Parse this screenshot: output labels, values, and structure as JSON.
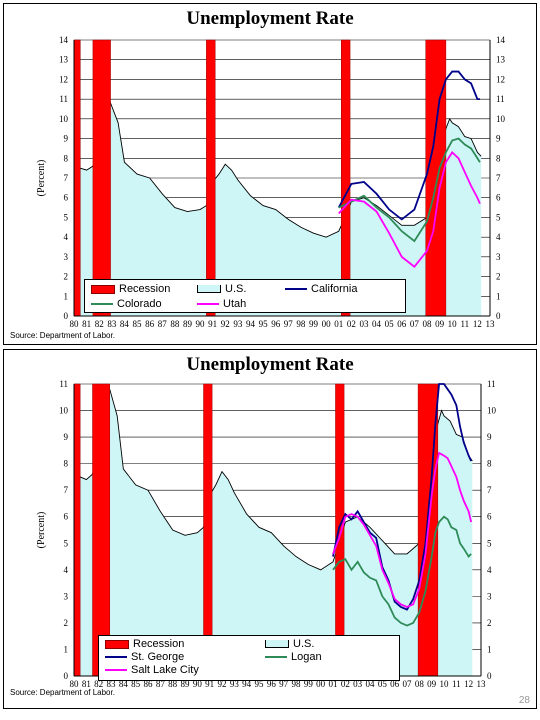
{
  "slide": {
    "page_number": "28"
  },
  "colors": {
    "recession": "#ff0000",
    "us_area": "#cff6f6",
    "california": "#00008b",
    "colorado": "#2e8b57",
    "utah": "#ff00ff",
    "st_george": "#00008b",
    "logan": "#2e8b57",
    "salt_lake_city": "#ff00ff",
    "grid": "#000000"
  },
  "chart_data": [
    {
      "type": "area",
      "title": "Unemployment Rate",
      "ylabel": "(Percent)",
      "source": "Source: Department of Labor.",
      "ylim": [
        0,
        14
      ],
      "yticks": [
        "0",
        "1",
        "2",
        "3",
        "4",
        "5",
        "6",
        "7",
        "8",
        "9",
        "10",
        "11",
        "12",
        "13",
        "14"
      ],
      "x_ticks": [
        "80",
        "81",
        "82",
        "83",
        "84",
        "85",
        "86",
        "87",
        "88",
        "89",
        "90",
        "91",
        "92",
        "93",
        "94",
        "95",
        "96",
        "97",
        "98",
        "99",
        "00",
        "01",
        "02",
        "03",
        "04",
        "05",
        "06",
        "07",
        "08",
        "09",
        "10",
        "11",
        "12",
        "13"
      ],
      "xlim": [
        1980,
        2013
      ],
      "grid": true,
      "legend": {
        "placement": "bottom-left",
        "labels": {
          "recession": "Recession",
          "us": "U.S.",
          "california": "California",
          "colorado": "Colorado",
          "utah": "Utah"
        }
      },
      "recessions": [
        [
          1980.0,
          1980.5
        ],
        [
          1981.5,
          1982.9
        ],
        [
          1990.5,
          1991.2
        ],
        [
          2001.2,
          2001.9
        ],
        [
          2007.9,
          2009.5
        ]
      ],
      "series": [
        {
          "name": "U.S.",
          "kind": "area",
          "x": [
            1980,
            1980.5,
            1981,
            1981.5,
            1982,
            1982.5,
            1982.9,
            1983.5,
            1984,
            1985,
            1986,
            1987,
            1988,
            1989,
            1990,
            1990.5,
            1991,
            1991.5,
            1992,
            1992.5,
            1993,
            1994,
            1995,
            1996,
            1997,
            1998,
            1999,
            2000,
            2001,
            2001.5,
            2002,
            2003,
            2004,
            2005,
            2006,
            2007,
            2008,
            2008.5,
            2009,
            2009.5,
            2009.8,
            2010,
            2010.5,
            2011,
            2011.5,
            2012,
            2012.3
          ],
          "y": [
            6.3,
            7.5,
            7.4,
            7.6,
            8.8,
            9.8,
            10.8,
            9.8,
            7.8,
            7.2,
            7.0,
            6.2,
            5.5,
            5.3,
            5.4,
            5.6,
            6.8,
            7.2,
            7.7,
            7.4,
            6.9,
            6.1,
            5.6,
            5.4,
            4.9,
            4.5,
            4.2,
            4.0,
            4.3,
            5.0,
            5.8,
            6.0,
            5.6,
            5.1,
            4.6,
            4.6,
            5.0,
            6.1,
            8.2,
            9.5,
            10.0,
            9.8,
            9.6,
            9.1,
            9.0,
            8.3,
            8.1
          ]
        },
        {
          "name": "California",
          "kind": "line",
          "x": [
            2001,
            2002,
            2003,
            2004,
            2005,
            2006,
            2007,
            2008,
            2008.5,
            2009,
            2009.5,
            2010,
            2010.5,
            2011,
            2011.5,
            2012,
            2012.2
          ],
          "y": [
            5.5,
            6.7,
            6.8,
            6.2,
            5.4,
            4.9,
            5.4,
            7.2,
            8.6,
            11.0,
            12.0,
            12.4,
            12.4,
            12.0,
            11.8,
            11.0,
            11.0
          ]
        },
        {
          "name": "Colorado",
          "kind": "line",
          "x": [
            2001,
            2002,
            2003,
            2004,
            2005,
            2006,
            2007,
            2008,
            2008.5,
            2009,
            2009.5,
            2010,
            2010.5,
            2011,
            2011.5,
            2012,
            2012.2
          ],
          "y": [
            5.5,
            5.8,
            6.1,
            5.5,
            5.0,
            4.3,
            3.8,
            4.8,
            6.0,
            7.5,
            8.3,
            8.9,
            9.0,
            8.7,
            8.5,
            8.0,
            7.8
          ]
        },
        {
          "name": "Utah",
          "kind": "line",
          "x": [
            2001,
            2002,
            2003,
            2004,
            2005,
            2006,
            2007,
            2008,
            2008.5,
            2009,
            2009.5,
            2010,
            2010.5,
            2011,
            2011.5,
            2012,
            2012.2
          ],
          "y": [
            5.2,
            5.9,
            5.8,
            5.3,
            4.2,
            3.0,
            2.5,
            3.3,
            4.3,
            6.5,
            7.8,
            8.3,
            8.0,
            7.3,
            6.6,
            6.0,
            5.7
          ]
        }
      ]
    },
    {
      "type": "area",
      "title": "Unemployment Rate",
      "ylabel": "(Percent)",
      "source": "Source: Department of Labor.",
      "ylim": [
        0,
        11
      ],
      "yticks": [
        "0",
        "1",
        "2",
        "3",
        "4",
        "5",
        "6",
        "7",
        "8",
        "9",
        "10",
        "11"
      ],
      "x_ticks": [
        "80",
        "81",
        "82",
        "83",
        "84",
        "85",
        "86",
        "87",
        "88",
        "89",
        "90",
        "91",
        "92",
        "93",
        "94",
        "95",
        "96",
        "97",
        "98",
        "99",
        "00",
        "01",
        "02",
        "03",
        "04",
        "05",
        "06",
        "07",
        "08",
        "09",
        "10",
        "11",
        "12",
        "13"
      ],
      "xlim": [
        1980,
        2013
      ],
      "grid": true,
      "legend": {
        "placement": "bottom-left",
        "labels": {
          "recession": "Recession",
          "us": "U.S.",
          "st_george": "St. George",
          "logan": "Logan",
          "salt_lake_city": "Salt Lake City"
        }
      },
      "recessions": [
        [
          1980.0,
          1980.5
        ],
        [
          1981.5,
          1982.9
        ],
        [
          1990.5,
          1991.2
        ],
        [
          2001.2,
          2001.9
        ],
        [
          2007.9,
          2009.5
        ]
      ],
      "series": [
        {
          "name": "U.S.",
          "kind": "area",
          "x": [
            1980,
            1980.5,
            1981,
            1981.5,
            1982,
            1982.5,
            1982.9,
            1983.5,
            1984,
            1985,
            1986,
            1987,
            1988,
            1989,
            1990,
            1990.5,
            1991,
            1991.5,
            1992,
            1992.5,
            1993,
            1994,
            1995,
            1996,
            1997,
            1998,
            1999,
            2000,
            2001,
            2001.5,
            2002,
            2003,
            2004,
            2005,
            2006,
            2007,
            2008,
            2008.5,
            2009,
            2009.5,
            2009.8,
            2010,
            2010.5,
            2011,
            2011.5,
            2012,
            2012.3
          ],
          "y": [
            6.3,
            7.5,
            7.4,
            7.6,
            8.8,
            9.8,
            10.8,
            9.8,
            7.8,
            7.2,
            7.0,
            6.2,
            5.5,
            5.3,
            5.4,
            5.6,
            6.8,
            7.2,
            7.7,
            7.4,
            6.9,
            6.1,
            5.6,
            5.4,
            4.9,
            4.5,
            4.2,
            4.0,
            4.3,
            5.0,
            5.8,
            6.0,
            5.6,
            5.1,
            4.6,
            4.6,
            5.0,
            6.1,
            8.2,
            9.5,
            10.0,
            9.8,
            9.6,
            9.1,
            9.0,
            8.3,
            8.1
          ]
        },
        {
          "name": "St. George",
          "kind": "line",
          "x": [
            2001,
            2001.5,
            2002,
            2002.5,
            2003,
            2003.5,
            2004,
            2004.5,
            2005,
            2005.5,
            2006,
            2006.5,
            2007,
            2007.5,
            2008,
            2008.5,
            2009,
            2009.3,
            2009.6,
            2010,
            2010.3,
            2010.6,
            2011,
            2011.3,
            2011.6,
            2012,
            2012.2
          ],
          "y": [
            4.5,
            5.6,
            6.1,
            5.9,
            6.2,
            5.8,
            5.4,
            5.2,
            4.1,
            3.6,
            2.8,
            2.6,
            2.5,
            2.9,
            3.6,
            5.0,
            7.5,
            9.5,
            11.0,
            11.4,
            10.8,
            10.6,
            10.2,
            9.4,
            8.8,
            8.3,
            8.1
          ]
        },
        {
          "name": "Logan",
          "kind": "line",
          "x": [
            2001,
            2001.5,
            2002,
            2002.5,
            2003,
            2003.5,
            2004,
            2004.5,
            2005,
            2005.5,
            2006,
            2006.5,
            2007,
            2007.5,
            2008,
            2008.5,
            2009,
            2009.3,
            2009.6,
            2010,
            2010.3,
            2010.6,
            2011,
            2011.3,
            2011.6,
            2012,
            2012.2
          ],
          "y": [
            4.0,
            4.3,
            4.4,
            4.0,
            4.3,
            3.9,
            3.7,
            3.6,
            3.0,
            2.7,
            2.2,
            2.0,
            1.9,
            2.0,
            2.4,
            3.2,
            4.5,
            5.4,
            5.8,
            6.0,
            5.9,
            5.6,
            5.5,
            5.0,
            4.8,
            4.5,
            4.6
          ]
        },
        {
          "name": "Salt Lake City",
          "kind": "line",
          "x": [
            2001,
            2001.5,
            2002,
            2002.5,
            2003,
            2003.5,
            2004,
            2004.5,
            2005,
            2005.5,
            2006,
            2006.5,
            2007,
            2007.5,
            2008,
            2008.5,
            2009,
            2009.3,
            2009.6,
            2010,
            2010.3,
            2010.6,
            2011,
            2011.3,
            2011.6,
            2012,
            2012.2
          ],
          "y": [
            4.6,
            5.2,
            6.0,
            6.1,
            6.0,
            5.7,
            5.3,
            4.9,
            4.0,
            3.5,
            2.9,
            2.7,
            2.6,
            2.7,
            3.3,
            4.6,
            6.8,
            7.8,
            8.4,
            8.3,
            8.2,
            7.9,
            7.5,
            7.0,
            6.6,
            6.2,
            5.8
          ]
        }
      ]
    }
  ]
}
